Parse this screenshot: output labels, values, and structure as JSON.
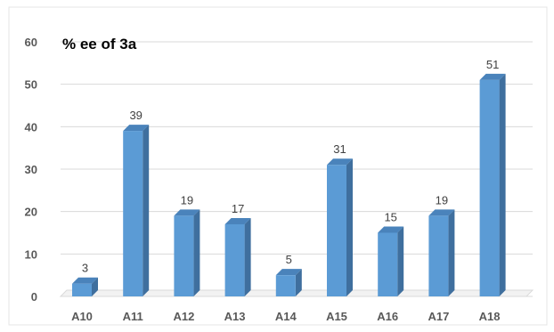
{
  "chart_data": {
    "type": "bar",
    "title": "% ee of 3a",
    "xlabel": "",
    "ylabel": "",
    "categories": [
      "A10",
      "A11",
      "A12",
      "A13",
      "A14",
      "A15",
      "A16",
      "A17",
      "A18"
    ],
    "values": [
      3,
      39,
      19,
      17,
      5,
      31,
      15,
      19,
      51
    ],
    "ylim": [
      0,
      60
    ],
    "yticks": [
      0,
      10,
      20,
      30,
      40,
      50,
      60
    ],
    "grid": true,
    "data_labels": true,
    "legend": "none",
    "colors": {
      "bar_front": "#5B9BD5",
      "bar_side": "#3F6F9E",
      "bar_top": "#4A83BB",
      "grid": "#D9D9D9"
    }
  }
}
